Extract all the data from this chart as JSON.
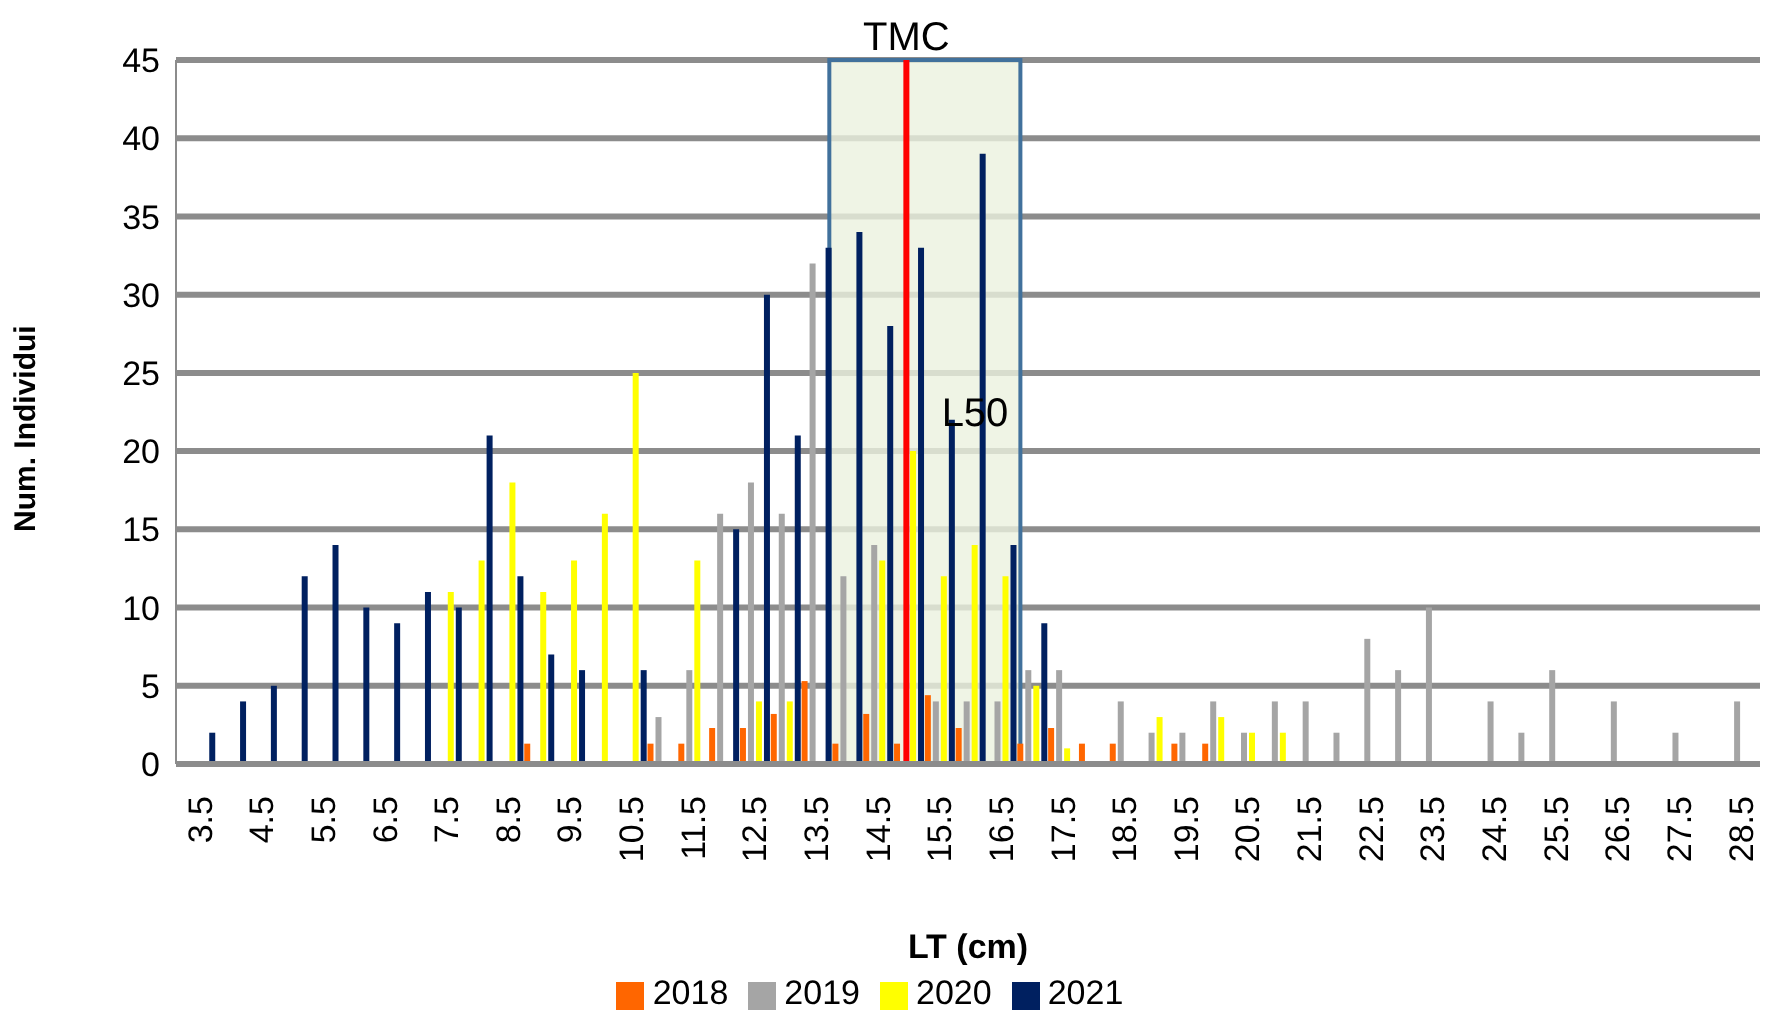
{
  "chart_data": {
    "type": "bar",
    "xlabel": "LT (cm)",
    "ylabel": "Num. Individui",
    "x": [
      3.5,
      4,
      4.5,
      5,
      5.5,
      6,
      6.5,
      7,
      7.5,
      8,
      8.5,
      9,
      9.5,
      10,
      10.5,
      11,
      11.5,
      12,
      12.5,
      13,
      13.5,
      14,
      14.5,
      15,
      15.5,
      16,
      16.5,
      17,
      17.5,
      18,
      18.5,
      19,
      19.5,
      20,
      20.5,
      21,
      21.5,
      22,
      22.5,
      23,
      23.5,
      24,
      24.5,
      25,
      25.5,
      26,
      26.5,
      27,
      27.5,
      28,
      28.5
    ],
    "xlim": [
      3.1,
      28.8
    ],
    "xticks": [
      3.5,
      4.5,
      5.5,
      6.5,
      7.5,
      8.5,
      9.5,
      10.5,
      11.5,
      12.5,
      13.5,
      14.5,
      15.5,
      16.5,
      17.5,
      18.5,
      19.5,
      20.5,
      21.5,
      22.5,
      23.5,
      24.5,
      25.5,
      26.5,
      27.5,
      28.5
    ],
    "ylim": [
      0,
      45
    ],
    "yticks": [
      0,
      5,
      10,
      15,
      20,
      25,
      30,
      35,
      40,
      45
    ],
    "grid": "y",
    "legend": "bottom",
    "series": [
      {
        "name": "2018",
        "color": "#ff6600",
        "values": [
          null,
          null,
          null,
          null,
          null,
          null,
          null,
          null,
          null,
          null,
          null,
          1.3,
          null,
          null,
          null,
          1.3,
          1.3,
          2.3,
          2.3,
          3.2,
          5.3,
          1.3,
          3.2,
          1.3,
          4.4,
          2.3,
          null,
          1.3,
          2.3,
          1.3,
          1.3,
          null,
          1.3,
          1.3,
          null,
          null,
          null,
          null,
          null,
          null,
          null,
          null,
          null,
          null,
          null,
          null,
          null,
          null,
          null,
          null,
          null
        ]
      },
      {
        "name": "2019",
        "color": "#a5a5a5",
        "values": [
          null,
          null,
          null,
          null,
          null,
          null,
          null,
          null,
          null,
          null,
          null,
          null,
          null,
          null,
          null,
          3,
          6,
          16,
          18,
          16,
          32,
          12,
          14,
          null,
          4,
          4,
          4,
          6,
          6,
          null,
          4,
          2,
          2,
          4,
          2,
          4,
          4,
          2,
          8,
          6,
          10,
          null,
          4,
          2,
          6,
          null,
          4,
          null,
          2,
          null,
          4
        ]
      },
      {
        "name": "2020",
        "color": "#ffff00",
        "values": [
          null,
          null,
          null,
          null,
          null,
          null,
          null,
          null,
          11,
          13,
          18,
          11,
          13,
          16,
          25,
          null,
          13,
          null,
          4,
          4,
          null,
          null,
          13,
          20,
          12,
          14,
          12,
          5,
          1,
          null,
          null,
          3,
          null,
          3,
          2,
          2,
          null,
          null,
          null,
          null,
          null,
          null,
          null,
          null,
          null,
          null,
          null,
          null,
          null,
          null,
          null
        ]
      },
      {
        "name": "2021",
        "color": "#002060",
        "values": [
          2,
          4,
          5,
          12,
          14,
          10,
          9,
          11,
          10,
          21,
          12,
          7,
          6,
          null,
          6,
          null,
          null,
          15,
          30,
          21,
          33,
          34,
          28,
          33,
          22,
          39,
          14,
          9,
          null,
          null,
          null,
          null,
          null,
          null,
          null,
          null,
          null,
          null,
          null,
          null,
          null,
          null,
          null,
          null,
          null,
          null,
          null,
          null,
          null,
          null,
          null
        ]
      }
    ],
    "ref_lines": [
      {
        "axis": "x",
        "value": 14.95,
        "label": "TMC",
        "color": "#ff0000"
      }
    ],
    "bands": [
      {
        "axis": "x",
        "from": 13.7,
        "to": 16.8,
        "label": "L50",
        "color": "#ebf1de"
      }
    ]
  }
}
